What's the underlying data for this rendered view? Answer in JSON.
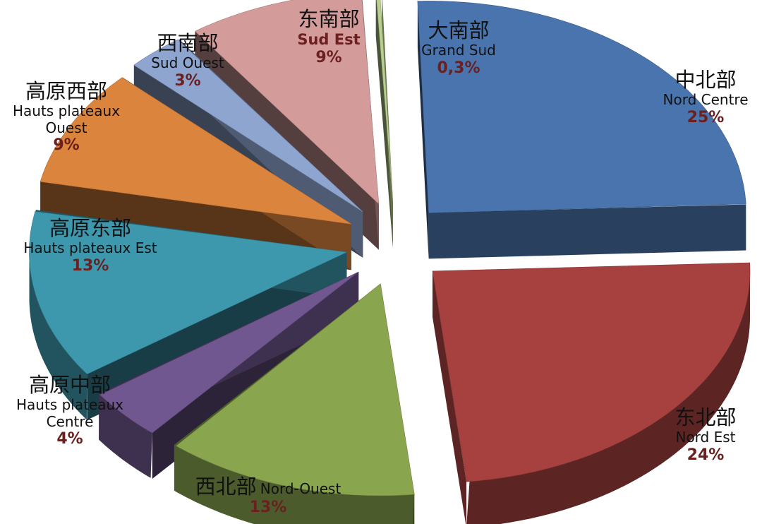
{
  "chart_data": {
    "type": "pie",
    "style": "3d-exploded",
    "slices": [
      {
        "id": "nord_centre",
        "cn": "中北部",
        "fr": "Nord Centre",
        "value": 25,
        "label": "25%",
        "color": "#4a74ad"
      },
      {
        "id": "nord_est",
        "cn": "东北部",
        "fr": "Nord Est",
        "value": 24,
        "label": "24%",
        "color": "#a74140"
      },
      {
        "id": "nord_ouest",
        "cn": "西北部",
        "fr": "Nord-Ouest",
        "value": 13,
        "label": "13%",
        "color": "#89a54e"
      },
      {
        "id": "hp_centre",
        "cn": "高原中部",
        "fr": "Hauts plateaux Centre",
        "fr_lines": [
          "Hauts plateaux",
          "Centre"
        ],
        "value": 4,
        "label": "4%",
        "color": "#71578f"
      },
      {
        "id": "hp_est",
        "cn": "高原东部",
        "fr": "Hauts plateaux Est",
        "value": 13,
        "label": "13%",
        "color": "#3d98ae"
      },
      {
        "id": "hp_ouest",
        "cn": "高原西部",
        "fr": "Hauts plateaux Ouest",
        "fr_lines": [
          "Hauts plateaux",
          "Ouest"
        ],
        "value": 9,
        "label": "9%",
        "color": "#db843d"
      },
      {
        "id": "sud_ouest",
        "cn": "西南部",
        "fr": "Sud Ouest",
        "value": 3,
        "label": "3%",
        "color": "#8ea5cf"
      },
      {
        "id": "sud_est",
        "cn": "东南部",
        "fr": "Sud Est",
        "value": 9,
        "label": "9%",
        "color": "#d39b9a"
      },
      {
        "id": "grand_sud",
        "cn": "大南部",
        "fr": "Grand Sud",
        "value": 0.3,
        "label": "0,3%",
        "color": "#b9d08e"
      }
    ]
  }
}
